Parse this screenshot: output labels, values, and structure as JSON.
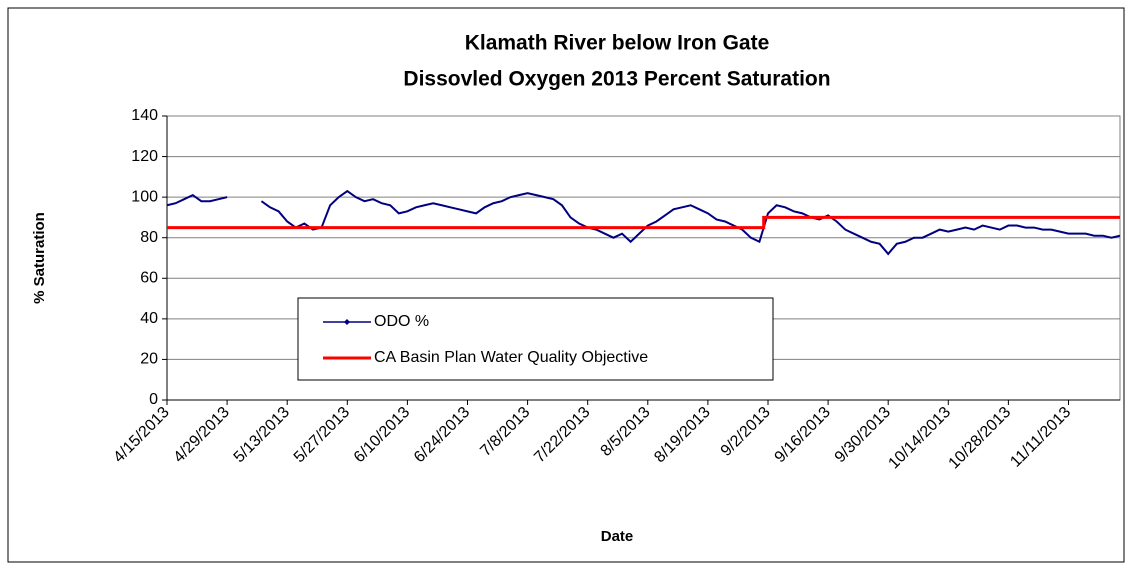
{
  "chart_data": {
    "type": "line",
    "title": "Klamath River below Iron Gate",
    "subtitle": "Dissovled Oxygen 2013 Percent Saturation",
    "x_label": "Date",
    "y_label": "% Saturation",
    "ylim": [
      0,
      140
    ],
    "yticks": [
      0,
      20,
      40,
      60,
      80,
      100,
      120,
      140
    ],
    "xlim": [
      "4/15/2013",
      "11/23/2013"
    ],
    "xticks": [
      "4/15/2013",
      "4/29/2013",
      "5/13/2013",
      "5/27/2013",
      "6/10/2013",
      "6/24/2013",
      "7/8/2013",
      "7/22/2013",
      "8/5/2013",
      "8/19/2013",
      "9/2/2013",
      "9/16/2013",
      "9/30/2013",
      "10/14/2013",
      "10/28/2013",
      "11/11/2013"
    ],
    "grid": true,
    "legend": "lower-left",
    "series": [
      {
        "name": "ODO %",
        "color": "#000080",
        "marker": "diamond",
        "x": [
          "4/15/2013",
          "4/17/2013",
          "4/19/2013",
          "4/21/2013",
          "4/23/2013",
          "4/25/2013",
          "4/27/2013",
          "4/29/2013",
          "5/1/2013",
          "5/3/2013",
          "5/5/2013",
          "5/7/2013",
          "5/9/2013",
          "5/11/2013",
          "5/13/2013",
          "5/15/2013",
          "5/17/2013",
          "5/19/2013",
          "5/21/2013",
          "5/23/2013",
          "5/25/2013",
          "5/27/2013",
          "5/29/2013",
          "5/31/2013",
          "6/2/2013",
          "6/4/2013",
          "6/6/2013",
          "6/8/2013",
          "6/10/2013",
          "6/12/2013",
          "6/14/2013",
          "6/16/2013",
          "6/18/2013",
          "6/20/2013",
          "6/22/2013",
          "6/24/2013",
          "6/26/2013",
          "6/28/2013",
          "6/30/2013",
          "7/2/2013",
          "7/4/2013",
          "7/6/2013",
          "7/8/2013",
          "7/10/2013",
          "7/12/2013",
          "7/14/2013",
          "7/16/2013",
          "7/18/2013",
          "7/20/2013",
          "7/22/2013",
          "7/24/2013",
          "7/26/2013",
          "7/28/2013",
          "7/30/2013",
          "8/1/2013",
          "8/3/2013",
          "8/5/2013",
          "8/7/2013",
          "8/9/2013",
          "8/11/2013",
          "8/13/2013",
          "8/15/2013",
          "8/17/2013",
          "8/19/2013",
          "8/21/2013",
          "8/23/2013",
          "8/25/2013",
          "8/27/2013",
          "8/29/2013",
          "8/31/2013",
          "9/2/2013",
          "9/4/2013",
          "9/6/2013",
          "9/8/2013",
          "9/10/2013",
          "9/12/2013",
          "9/14/2013",
          "9/16/2013",
          "9/18/2013",
          "9/20/2013",
          "9/22/2013",
          "9/24/2013",
          "9/26/2013",
          "9/28/2013",
          "9/30/2013",
          "10/2/2013",
          "10/4/2013",
          "10/6/2013",
          "10/8/2013",
          "10/10/2013",
          "10/12/2013",
          "10/14/2013",
          "10/16/2013",
          "10/18/2013",
          "10/20/2013",
          "10/22/2013",
          "10/24/2013",
          "10/26/2013",
          "10/28/2013",
          "10/30/2013",
          "11/1/2013",
          "11/3/2013",
          "11/5/2013",
          "11/7/2013",
          "11/9/2013",
          "11/11/2013",
          "11/13/2013",
          "11/15/2013",
          "11/17/2013",
          "11/19/2013",
          "11/21/2013",
          "11/23/2013"
        ],
        "values": [
          96,
          97,
          99,
          101,
          98,
          98,
          99,
          100,
          null,
          null,
          null,
          98,
          95,
          93,
          88,
          85,
          87,
          84,
          85,
          96,
          100,
          103,
          100,
          98,
          99,
          97,
          96,
          92,
          93,
          95,
          96,
          97,
          96,
          95,
          94,
          93,
          92,
          95,
          97,
          98,
          100,
          101,
          102,
          101,
          100,
          99,
          96,
          90,
          87,
          85,
          84,
          82,
          80,
          82,
          78,
          82,
          86,
          88,
          91,
          94,
          95,
          96,
          94,
          92,
          89,
          88,
          86,
          84,
          80,
          78,
          92,
          96,
          95,
          93,
          92,
          90,
          89,
          91,
          88,
          84,
          82,
          80,
          78,
          77,
          72,
          77,
          78,
          80,
          80,
          82,
          84,
          83,
          84,
          85,
          84,
          86,
          85,
          84,
          86,
          86,
          85,
          85,
          84,
          84,
          83,
          82,
          82,
          82,
          81,
          81,
          80,
          81
        ]
      },
      {
        "name": "CA Basin Plan Water Quality Objective",
        "color": "#ff0000",
        "x": [
          "4/15/2013",
          "9/1/2013",
          "9/1/2013",
          "11/23/2013"
        ],
        "values": [
          85,
          85,
          90,
          90
        ]
      }
    ]
  }
}
